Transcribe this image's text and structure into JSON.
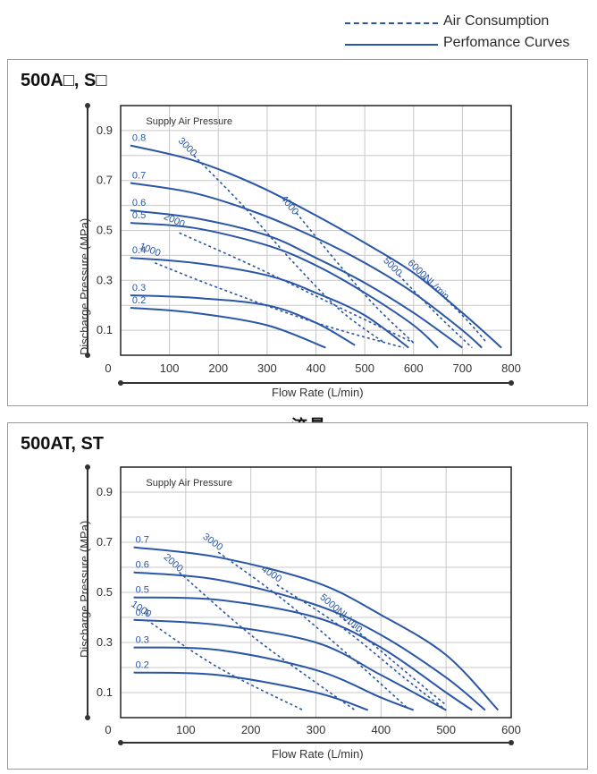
{
  "legend": {
    "air_consumption": "Air Consumption",
    "performance": "Perfomance Curves"
  },
  "divider_label": "流量",
  "colors": {
    "curve": "#2a56a6",
    "grid": "#c8c8c8",
    "axis": "#333333"
  },
  "chart_data": [
    {
      "type": "line",
      "title": "500A□, S□",
      "xlabel": "Flow Rate (L/min)",
      "ylabel": "Discharge Pressure (MPa)",
      "annotation": "Supply Air Pressure",
      "xlim": [
        0,
        800
      ],
      "ylim": [
        0,
        1.0
      ],
      "xticks": [
        "0",
        "100",
        "200",
        "300",
        "400",
        "500",
        "600",
        "700",
        "800"
      ],
      "yticks": [
        "0.1",
        "0.3",
        "0.5",
        "0.7",
        "0.9"
      ],
      "grid": true,
      "performance_series": [
        {
          "name": "0.8",
          "x": [
            20,
            150,
            280,
            400,
            500,
            600,
            700,
            780
          ],
          "y": [
            0.84,
            0.78,
            0.68,
            0.56,
            0.45,
            0.33,
            0.17,
            0.03
          ]
        },
        {
          "name": "0.7",
          "x": [
            20,
            150,
            280,
            400,
            500,
            600,
            700,
            740
          ],
          "y": [
            0.69,
            0.65,
            0.57,
            0.47,
            0.37,
            0.25,
            0.1,
            0.03
          ]
        },
        {
          "name": "0.6",
          "x": [
            20,
            150,
            300,
            400,
            500,
            600,
            700
          ],
          "y": [
            0.58,
            0.55,
            0.48,
            0.39,
            0.29,
            0.17,
            0.03
          ]
        },
        {
          "name": "0.5",
          "x": [
            20,
            150,
            300,
            400,
            500,
            600,
            650
          ],
          "y": [
            0.53,
            0.51,
            0.44,
            0.36,
            0.25,
            0.12,
            0.03
          ]
        },
        {
          "name": "0.4",
          "x": [
            20,
            150,
            300,
            400,
            500,
            590
          ],
          "y": [
            0.39,
            0.37,
            0.32,
            0.25,
            0.16,
            0.03
          ]
        },
        {
          "name": "0.3",
          "x": [
            20,
            150,
            300,
            400,
            480
          ],
          "y": [
            0.24,
            0.23,
            0.2,
            0.13,
            0.04
          ]
        },
        {
          "name": "0.2",
          "x": [
            20,
            150,
            300,
            420
          ],
          "y": [
            0.19,
            0.17,
            0.12,
            0.03
          ]
        }
      ],
      "consumption_series": [
        {
          "name": "1000",
          "x": [
            70,
            200,
            400,
            580
          ],
          "y": [
            0.37,
            0.27,
            0.13,
            0.03
          ]
        },
        {
          "name": "2000",
          "x": [
            120,
            280,
            460,
            600
          ],
          "y": [
            0.49,
            0.35,
            0.18,
            0.05
          ]
        },
        {
          "name": "3000",
          "x": [
            150,
            250,
            350,
            450,
            540
          ],
          "y": [
            0.8,
            0.6,
            0.38,
            0.18,
            0.05
          ]
        },
        {
          "name": "4000",
          "x": [
            360,
            440,
            520,
            600
          ],
          "y": [
            0.57,
            0.38,
            0.2,
            0.05
          ]
        },
        {
          "name": "5000",
          "x": [
            570,
            650,
            720
          ],
          "y": [
            0.32,
            0.16,
            0.03
          ]
        },
        {
          "name": "6000NL/min",
          "x": [
            620,
            700,
            750
          ],
          "y": [
            0.31,
            0.16,
            0.05
          ]
        }
      ]
    },
    {
      "type": "line",
      "title": "500AT, ST",
      "xlabel": "Flow Rate (L/min)",
      "ylabel": "Discharge Pressure (MPa)",
      "annotation": "Supply Air Pressure",
      "xlim": [
        0,
        600
      ],
      "ylim": [
        0,
        1.0
      ],
      "xticks": [
        "0",
        "100",
        "200",
        "300",
        "400",
        "500",
        "600"
      ],
      "yticks": [
        "0.1",
        "0.3",
        "0.5",
        "0.7",
        "0.9"
      ],
      "grid": true,
      "performance_series": [
        {
          "name": "0.7",
          "x": [
            20,
            150,
            300,
            400,
            500,
            580
          ],
          "y": [
            0.68,
            0.64,
            0.54,
            0.41,
            0.25,
            0.03
          ]
        },
        {
          "name": "0.6",
          "x": [
            20,
            150,
            300,
            400,
            500,
            560
          ],
          "y": [
            0.58,
            0.55,
            0.45,
            0.33,
            0.16,
            0.03
          ]
        },
        {
          "name": "0.5",
          "x": [
            20,
            150,
            300,
            400,
            500,
            540
          ],
          "y": [
            0.48,
            0.47,
            0.4,
            0.28,
            0.1,
            0.03
          ]
        },
        {
          "name": "0.4",
          "x": [
            20,
            150,
            300,
            400,
            500
          ],
          "y": [
            0.39,
            0.37,
            0.3,
            0.17,
            0.03
          ]
        },
        {
          "name": "0.3",
          "x": [
            20,
            150,
            300,
            400,
            450
          ],
          "y": [
            0.28,
            0.27,
            0.19,
            0.08,
            0.03
          ]
        },
        {
          "name": "0.2",
          "x": [
            20,
            150,
            300,
            380
          ],
          "y": [
            0.18,
            0.17,
            0.1,
            0.03
          ]
        }
      ],
      "consumption_series": [
        {
          "name": "1000",
          "x": [
            40,
            150,
            280
          ],
          "y": [
            0.39,
            0.2,
            0.03
          ]
        },
        {
          "name": "2000",
          "x": [
            90,
            200,
            300,
            360
          ],
          "y": [
            0.58,
            0.33,
            0.14,
            0.03
          ]
        },
        {
          "name": "3000",
          "x": [
            150,
            250,
            350,
            440
          ],
          "y": [
            0.66,
            0.47,
            0.25,
            0.04
          ]
        },
        {
          "name": "4000",
          "x": [
            240,
            340,
            440,
            500
          ],
          "y": [
            0.53,
            0.36,
            0.15,
            0.03
          ]
        },
        {
          "name": "5000NL/min",
          "x": [
            330,
            430,
            500
          ],
          "y": [
            0.42,
            0.2,
            0.05
          ]
        }
      ]
    }
  ]
}
